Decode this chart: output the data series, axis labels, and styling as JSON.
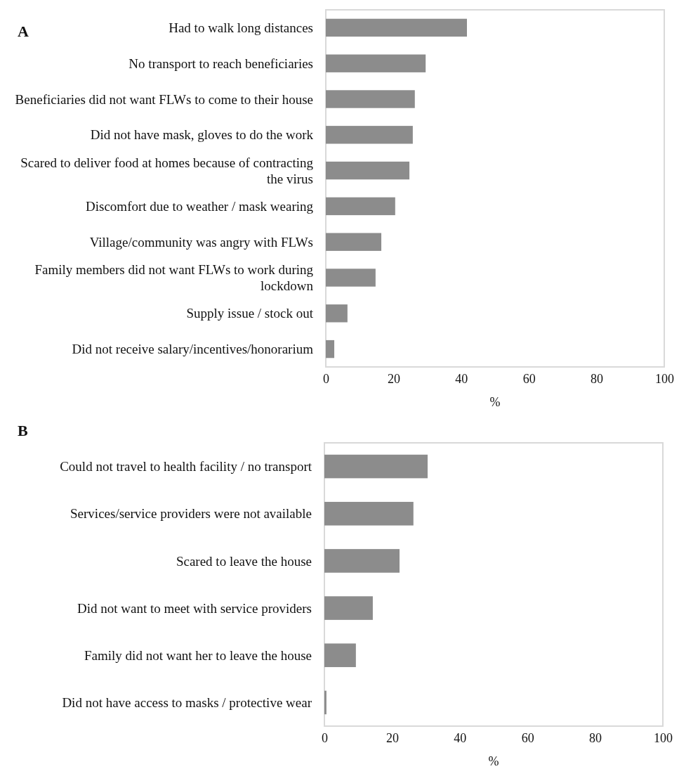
{
  "chart_data": [
    {
      "type": "bar",
      "orientation": "horizontal",
      "title": "A",
      "xlabel": "%",
      "color": "#8c8c8c",
      "xlim": [
        0,
        100
      ],
      "xticks": [
        0,
        20,
        40,
        60,
        80,
        100
      ],
      "categories": [
        "Had to walk long distances",
        "No transport to reach beneficiaries",
        "Beneficiaries did not want FLWs to come to their house",
        "Did not have mask, gloves to do the work",
        "Scared to deliver food at homes because of contracting the virus",
        "Discomfort due to weather / mask wearing",
        "Village/community was angry with FLWs",
        "Family members did not want FLWs to work during lockdown",
        "Supply issue / stock out",
        "Did not receive salary/incentives/honorarium"
      ],
      "values": [
        41.7,
        29.5,
        26.3,
        25.7,
        24.7,
        20.5,
        16.4,
        14.7,
        6.4,
        2.5
      ]
    },
    {
      "type": "bar",
      "orientation": "horizontal",
      "title": "B",
      "xlabel": "%",
      "color": "#8c8c8c",
      "xlim": [
        0,
        100
      ],
      "xticks": [
        0,
        20,
        40,
        60,
        80,
        100
      ],
      "categories": [
        "Could not travel to health facility / no transport",
        "Services/service providers were not available",
        "Scared to leave the house",
        "Did not want to meet with service providers",
        "Family did not want her to leave the house",
        "Did not have access to masks / protective wear"
      ],
      "values": [
        30.5,
        26.3,
        22.2,
        14.3,
        9.3,
        0.6
      ]
    }
  ]
}
